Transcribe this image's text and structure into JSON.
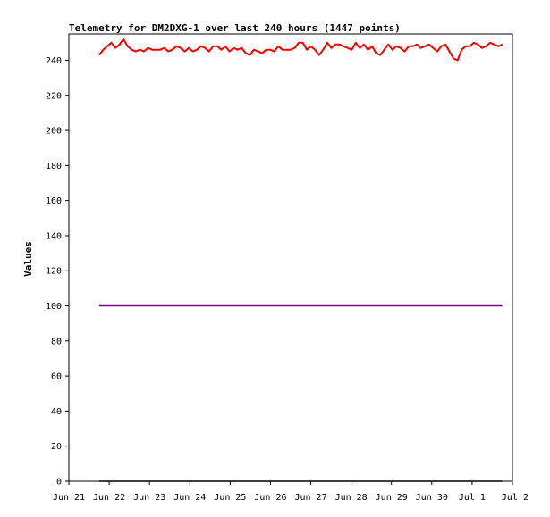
{
  "chart_data": {
    "type": "line",
    "title": "Telemetry for DM2DXG-1 over last 240 hours (1447 points)",
    "xlabel": "",
    "ylabel": "Values",
    "x_ticks": [
      "Jun 21",
      "Jun 22",
      "Jun 23",
      "Jun 24",
      "Jun 25",
      "Jun 26",
      "Jun 27",
      "Jun 28",
      "Jun 29",
      "Jun 30",
      "Jul 1",
      "Jul 2"
    ],
    "xlim": [
      "2024-06-21T00:00",
      "2024-07-02T00:00"
    ],
    "ylim": [
      0,
      255
    ],
    "y_ticks": [
      0,
      20,
      40,
      60,
      80,
      100,
      120,
      140,
      160,
      180,
      200,
      220,
      240
    ],
    "grid": false,
    "legend": "none",
    "series": [
      {
        "color": "#ff0000",
        "x_range": [
          "2024-06-21T18:00",
          "2024-07-01T18:00"
        ],
        "values": [
          243,
          246,
          248,
          250,
          247,
          249,
          252,
          248,
          246,
          245,
          246,
          245,
          247,
          246,
          246,
          246,
          247,
          245,
          246,
          248,
          247,
          245,
          247,
          245,
          246,
          248,
          247,
          245,
          248,
          248,
          246,
          248,
          245,
          247,
          246,
          247,
          244,
          243,
          246,
          245,
          244,
          246,
          246,
          245,
          248,
          246,
          246,
          246,
          247,
          250,
          250,
          246,
          248,
          246,
          243,
          246,
          250,
          247,
          249,
          249,
          248,
          247,
          246,
          250,
          247,
          249,
          246,
          248,
          244,
          243,
          246,
          249,
          246,
          248,
          247,
          245,
          248,
          248,
          249,
          247,
          248,
          249,
          247,
          245,
          248,
          249,
          245,
          241,
          240,
          246,
          248,
          248,
          250,
          249,
          247,
          248,
          250,
          249,
          248,
          249
        ]
      },
      {
        "color": "#800080",
        "x_range": [
          "2024-06-21T18:00",
          "2024-07-01T18:00"
        ],
        "values": [
          100,
          100
        ]
      },
      {
        "color": "#000000",
        "x_range": [
          "2024-06-21T18:00",
          "2024-07-01T18:00"
        ],
        "values": [
          0,
          0
        ]
      }
    ]
  }
}
